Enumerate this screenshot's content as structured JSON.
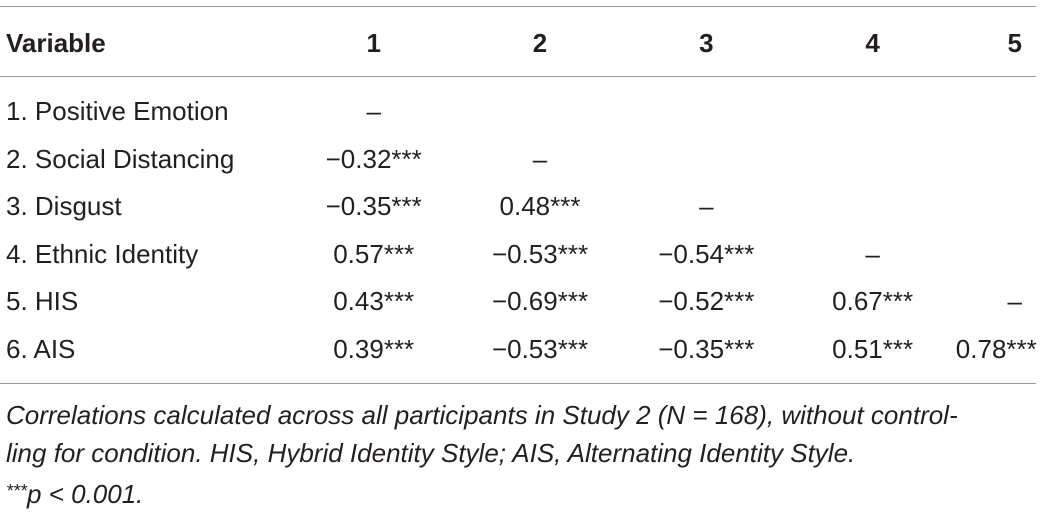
{
  "table": {
    "headers": [
      "Variable",
      "1",
      "2",
      "3",
      "4",
      "5"
    ],
    "rows": [
      {
        "variable": "1. Positive Emotion",
        "values": [
          "–",
          "",
          "",
          "",
          ""
        ]
      },
      {
        "variable": "2. Social Distancing",
        "values": [
          "−0.32***",
          "–",
          "",
          "",
          ""
        ]
      },
      {
        "variable": "3. Disgust",
        "values": [
          "−0.35***",
          "0.48***",
          "–",
          "",
          ""
        ]
      },
      {
        "variable": "4. Ethnic Identity",
        "values": [
          "0.57***",
          "−0.53***",
          "−0.54***",
          "–",
          ""
        ]
      },
      {
        "variable": "5. HIS",
        "values": [
          "0.43***",
          "−0.69***",
          "−0.52***",
          "0.67***",
          "–"
        ]
      },
      {
        "variable": "6. AIS",
        "values": [
          "0.39***",
          "−0.53***",
          "−0.35***",
          "0.51***",
          "0.78***"
        ]
      }
    ]
  },
  "notes": {
    "line1": "Correlations calculated across all participants in Study 2 (N = 168), without control-",
    "line2": "ling for condition. HIS, Hybrid Identity Style; AIS, Alternating Identity Style.",
    "sig_stars": "***",
    "sig_text": "p < 0.001."
  }
}
